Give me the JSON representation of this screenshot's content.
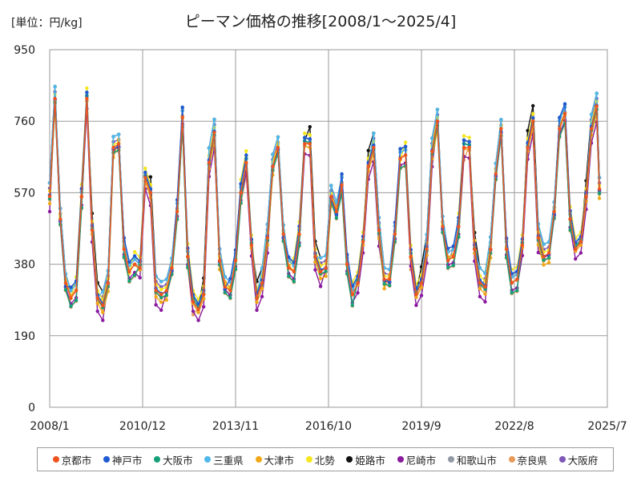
{
  "chart_data": {
    "type": "line",
    "unit_label": "[単位：円/kg]",
    "title": "ピーマン価格の推移[2008/1～2025/4]",
    "xlabel": "",
    "ylabel": "",
    "ylim": [
      0,
      950
    ],
    "y_ticks": [
      "0",
      "190",
      "380",
      "570",
      "760",
      "950"
    ],
    "x_range": [
      "2008-01",
      "2025-07"
    ],
    "x_ticks": [
      {
        "date": "2008-01",
        "label": "2008/1"
      },
      {
        "date": "2010-12",
        "label": "2010/12"
      },
      {
        "date": "2013-11",
        "label": "2013/11"
      },
      {
        "date": "2016-10",
        "label": "2016/10"
      },
      {
        "date": "2019-09",
        "label": "2019/9"
      },
      {
        "date": "2022-08",
        "label": "2022/8"
      },
      {
        "date": "2025-07",
        "label": "2025/7"
      }
    ],
    "grid": true,
    "legend_position": "bottom",
    "series": [
      {
        "name": "京都市",
        "color": "#f0541e",
        "base_shift": 0,
        "values": [
          [
            "2008-01",
            560
          ],
          [
            "2008-03",
            820
          ],
          [
            "2008-05",
            500
          ],
          [
            "2008-07",
            330
          ],
          [
            "2008-09",
            290
          ],
          [
            "2008-11",
            310
          ],
          [
            "2009-01",
            560
          ],
          [
            "2009-03",
            820
          ],
          [
            "2009-05",
            470
          ],
          [
            "2009-07",
            290
          ],
          [
            "2009-09",
            270
          ],
          [
            "2009-11",
            330
          ],
          [
            "2010-01",
            690
          ],
          [
            "2010-03",
            700
          ],
          [
            "2010-05",
            420
          ],
          [
            "2010-07",
            360
          ],
          [
            "2010-09",
            380
          ],
          [
            "2010-11",
            370
          ],
          [
            "2011-01",
            610
          ],
          [
            "2011-03",
            570
          ],
          [
            "2011-05",
            310
          ],
          [
            "2011-07",
            300
          ],
          [
            "2011-09",
            310
          ],
          [
            "2011-11",
            370
          ],
          [
            "2012-01",
            520
          ],
          [
            "2012-03",
            770
          ],
          [
            "2012-05",
            400
          ],
          [
            "2012-07",
            280
          ],
          [
            "2012-09",
            260
          ],
          [
            "2012-11",
            300
          ],
          [
            "2013-01",
            650
          ],
          [
            "2013-03",
            730
          ],
          [
            "2013-05",
            390
          ],
          [
            "2013-07",
            320
          ],
          [
            "2013-09",
            310
          ],
          [
            "2013-11",
            390
          ],
          [
            "2014-01",
            570
          ],
          [
            "2014-03",
            650
          ],
          [
            "2014-05",
            430
          ],
          [
            "2014-07",
            290
          ],
          [
            "2014-09",
            330
          ],
          [
            "2014-11",
            450
          ],
          [
            "2015-01",
            640
          ],
          [
            "2015-03",
            690
          ],
          [
            "2015-05",
            460
          ],
          [
            "2015-07",
            370
          ],
          [
            "2015-09",
            360
          ],
          [
            "2015-11",
            460
          ],
          [
            "2016-01",
            700
          ],
          [
            "2016-03",
            700
          ],
          [
            "2016-05",
            400
          ],
          [
            "2016-07",
            360
          ],
          [
            "2016-09",
            370
          ],
          [
            "2016-11",
            560
          ],
          [
            "2017-01",
            520
          ],
          [
            "2017-03",
            590
          ],
          [
            "2017-05",
            380
          ],
          [
            "2017-07",
            300
          ],
          [
            "2017-09",
            330
          ],
          [
            "2017-11",
            440
          ],
          [
            "2018-01",
            640
          ],
          [
            "2018-03",
            690
          ],
          [
            "2018-05",
            470
          ],
          [
            "2018-07",
            340
          ],
          [
            "2018-09",
            340
          ],
          [
            "2018-11",
            460
          ],
          [
            "2019-01",
            660
          ],
          [
            "2019-03",
            670
          ],
          [
            "2019-05",
            400
          ],
          [
            "2019-07",
            300
          ],
          [
            "2019-09",
            330
          ],
          [
            "2019-11",
            420
          ],
          [
            "2020-01",
            680
          ],
          [
            "2020-03",
            760
          ],
          [
            "2020-05",
            480
          ],
          [
            "2020-07",
            390
          ],
          [
            "2020-09",
            400
          ],
          [
            "2020-11",
            480
          ],
          [
            "2021-01",
            690
          ],
          [
            "2021-03",
            690
          ],
          [
            "2021-05",
            420
          ],
          [
            "2021-07",
            330
          ],
          [
            "2021-09",
            320
          ],
          [
            "2021-11",
            420
          ],
          [
            "2022-01",
            620
          ],
          [
            "2022-03",
            740
          ],
          [
            "2022-05",
            420
          ],
          [
            "2022-07",
            330
          ],
          [
            "2022-09",
            340
          ],
          [
            "2022-11",
            430
          ],
          [
            "2023-01",
            690
          ],
          [
            "2023-03",
            760
          ],
          [
            "2023-05",
            450
          ],
          [
            "2023-07",
            400
          ],
          [
            "2023-09",
            410
          ],
          [
            "2023-11",
            520
          ],
          [
            "2024-01",
            740
          ],
          [
            "2024-03",
            780
          ],
          [
            "2024-05",
            500
          ],
          [
            "2024-07",
            420
          ],
          [
            "2024-09",
            440
          ],
          [
            "2024-11",
            560
          ],
          [
            "2025-01",
            740
          ],
          [
            "2025-03",
            800
          ],
          [
            "2025-04",
            580
          ]
        ]
      },
      {
        "name": "神戸市",
        "color": "#1e5ad2",
        "base_shift": 12
      },
      {
        "name": "大阪市",
        "color": "#16a078",
        "base_shift": -10
      },
      {
        "name": "三重県",
        "color": "#4fb8ea",
        "base_shift": 20
      },
      {
        "name": "大津市",
        "color": "#f0a818",
        "base_shift": -6
      },
      {
        "name": "北勢",
        "color": "#f5e61e",
        "base_shift": 16
      },
      {
        "name": "姫路市",
        "color": "#111111",
        "base_shift": 25
      },
      {
        "name": "尼崎市",
        "color": "#8a1a9e",
        "base_shift": -22
      },
      {
        "name": "和歌山市",
        "color": "#9098a4",
        "base_shift": 8
      },
      {
        "name": "奈良県",
        "color": "#e89a5a",
        "base_shift": -14
      },
      {
        "name": "大阪府",
        "color": "#7e57b8",
        "base_shift": 4
      }
    ]
  }
}
